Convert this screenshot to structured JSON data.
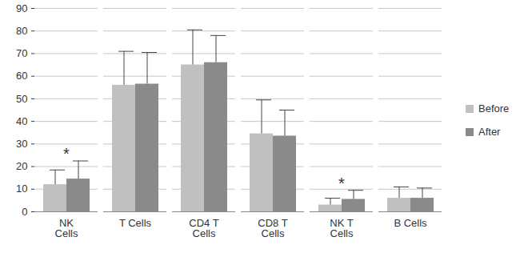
{
  "chart_data": {
    "type": "bar",
    "categories": [
      "NK\nCells",
      "T Cells",
      "CD4 T\nCells",
      "CD8 T\nCells",
      "NK T\nCells",
      "B Cells"
    ],
    "series": [
      {
        "name": "Before",
        "color": "#c0c0c0",
        "values": [
          12,
          56,
          65,
          34.5,
          3,
          6
        ],
        "errors": [
          6.5,
          15,
          15.5,
          15,
          3,
          5
        ]
      },
      {
        "name": "After",
        "color": "#8a8a8a",
        "values": [
          14.5,
          56.5,
          66,
          33.5,
          5.5,
          6
        ],
        "errors": [
          8,
          14,
          12,
          11.5,
          4,
          4.5
        ]
      }
    ],
    "annotations": [
      {
        "text": "*",
        "category": "NK\nCells"
      },
      {
        "text": "*",
        "category": "NK T\nCells"
      }
    ],
    "ylim": [
      0,
      90
    ],
    "yticks": [
      0,
      10,
      20,
      30,
      40,
      50,
      60,
      70,
      80,
      90
    ],
    "grid": true,
    "legend": "right"
  }
}
